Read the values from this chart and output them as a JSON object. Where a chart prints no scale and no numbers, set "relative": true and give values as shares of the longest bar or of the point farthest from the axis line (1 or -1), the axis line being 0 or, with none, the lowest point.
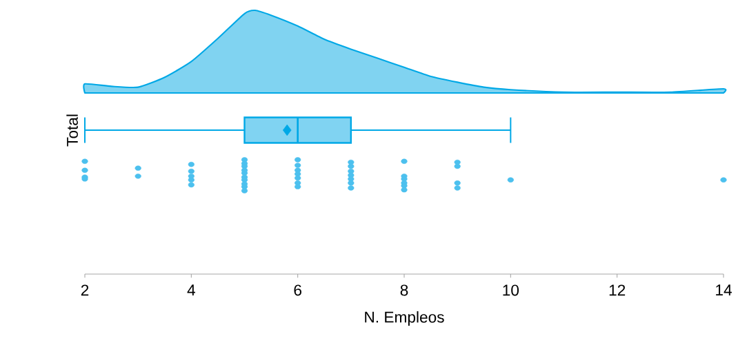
{
  "chart_data": [
    {
      "type": "area",
      "relative": true,
      "xlim": [
        2,
        14
      ],
      "color": "#80d3f1",
      "x": [
        2,
        2.5,
        3,
        3.5,
        4,
        4.5,
        5,
        5.2,
        5.5,
        6,
        6.5,
        7,
        7.5,
        8,
        8.5,
        9,
        9.5,
        10,
        11,
        12,
        13,
        14
      ],
      "values": [
        0.11,
        0.08,
        0.07,
        0.19,
        0.38,
        0.66,
        0.96,
        1,
        0.94,
        0.81,
        0.65,
        0.53,
        0.42,
        0.31,
        0.2,
        0.13,
        0.07,
        0.04,
        0.01,
        0.01,
        0.01,
        0.05
      ]
    },
    {
      "type": "box",
      "orientation": "horizontal",
      "xlabel": "N. Empleos",
      "categories": [
        "Total"
      ],
      "color": "#00a8e6",
      "boxes": [
        {
          "low": 2,
          "q1": 5,
          "median": 6,
          "q3": 7,
          "high": 10,
          "mean": 5.8
        }
      ],
      "xlim": [
        2,
        14
      ],
      "xticks": [
        2,
        4,
        6,
        8,
        10,
        12,
        14
      ]
    },
    {
      "type": "scatter",
      "relative": true,
      "xlim": [
        2,
        14
      ],
      "color": "#4cc0ee",
      "x": [
        2,
        2,
        2,
        2,
        3,
        3,
        4,
        4,
        4,
        4,
        4,
        5,
        5,
        5,
        5,
        5,
        5,
        5,
        5,
        5,
        5,
        6,
        6,
        6,
        6,
        6,
        6,
        6,
        7,
        7,
        7,
        7,
        7,
        7,
        7,
        8,
        8,
        8,
        8,
        8,
        8,
        9,
        9,
        9,
        9,
        10,
        14
      ],
      "values": [
        0.95,
        0.66,
        0.44,
        0.38,
        0.73,
        0.47,
        0.85,
        0.63,
        0.47,
        0.35,
        0.19,
        1,
        0.88,
        0.79,
        0.66,
        0.57,
        0.44,
        0.35,
        0.22,
        0.13,
        0,
        1,
        0.82,
        0.66,
        0.54,
        0.41,
        0.25,
        0.13,
        0.92,
        0.79,
        0.63,
        0.5,
        0.38,
        0.25,
        0.09,
        0.95,
        0.47,
        0.38,
        0.25,
        0.16,
        0.03,
        0.92,
        0.79,
        0.25,
        0.09,
        0.35,
        0.35
      ]
    }
  ]
}
